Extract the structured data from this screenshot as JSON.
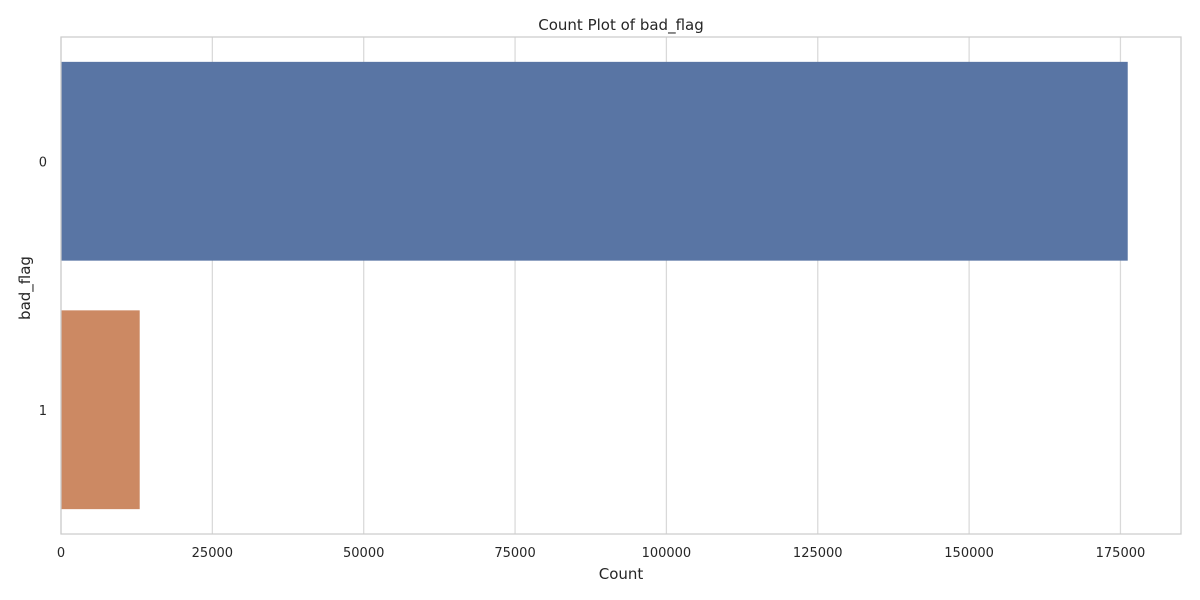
{
  "chart_data": {
    "type": "bar",
    "orientation": "horizontal",
    "title": "Count Plot of bad_flag",
    "xlabel": "Count",
    "ylabel": "bad_flag",
    "categories": [
      "0",
      "1"
    ],
    "values": [
      176200,
      13000
    ],
    "colors": [
      "#5975a4",
      "#cc8963"
    ],
    "xlim": [
      0,
      185000
    ],
    "xticks": [
      0,
      25000,
      50000,
      75000,
      100000,
      125000,
      150000,
      175000
    ],
    "xtick_labels": [
      "0",
      "25000",
      "50000",
      "75000",
      "100000",
      "125000",
      "150000",
      "175000"
    ],
    "grid": true,
    "legend": "none"
  }
}
